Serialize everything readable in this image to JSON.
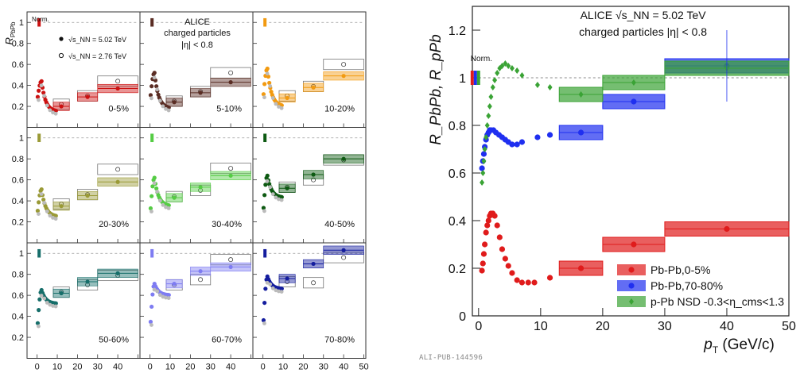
{
  "footer": {
    "publication_id": "ALI-PUB-144596"
  },
  "colors": {
    "pbpb_0_5": "#cc1111",
    "pbpb_5_10": "#5a2d24",
    "pbpb_10_20": "#f29a10",
    "pbpb_20_30": "#9a9a36",
    "pbpb_30_40": "#55cc44",
    "pbpb_40_50": "#0d5a12",
    "pbpb_50_60": "#166e6a",
    "pbpb_60_70": "#7e7cf2",
    "pbpb_70_80": "#141d9e",
    "right_pbpb_0_5": "#e01b1b",
    "right_pbpb_70_80": "#1f2ff0",
    "right_ppb": "#3aa335",
    "ref_2_76": "#9a9a9a"
  },
  "chart_data": [
    {
      "type": "scatter",
      "name": "left-grid",
      "ylabel_main": "R",
      "ylabel_sub": "PbPb",
      "xlabel_main": "p",
      "xlabel_sub": "T",
      "xlabel_unit": "(GeV/c)",
      "xlim": [
        -5,
        51
      ],
      "ylim": [
        0,
        1.1
      ],
      "xticks": [
        0,
        10,
        20,
        30,
        40,
        50
      ],
      "yticks": [
        0.2,
        0.4,
        0.6,
        0.8,
        1
      ],
      "norm_label": "Norm.",
      "experiment": "ALICE",
      "subtitle_line1": "charged particles",
      "subtitle_line2": "|η| < 0.8",
      "legend": [
        {
          "marker": "filled",
          "text": "√s_NN = 5.02 TeV"
        },
        {
          "marker": "open",
          "text": "√s_NN = 2.76 TeV"
        }
      ],
      "panels": [
        {
          "label": "0-5%",
          "ypk": 0.44,
          "ymin": 0.15,
          "bins": [
            [
              2.0,
              0.16
            ],
            [
              12,
              0.2
            ],
            [
              25,
              0.29
            ],
            [
              40,
              0.37
            ]
          ],
          "ref": [
            [
              40,
              0.44
            ],
            [
              25,
              0.3
            ],
            [
              12,
              0.22
            ]
          ]
        },
        {
          "label": "5-10%",
          "ypk": 0.52,
          "ymin": 0.18,
          "bins": [
            [
              2.0,
              0.18
            ],
            [
              12,
              0.24
            ],
            [
              25,
              0.33
            ],
            [
              40,
              0.43
            ]
          ],
          "ref": [
            [
              40,
              0.52
            ],
            [
              25,
              0.34
            ],
            [
              12,
              0.25
            ]
          ]
        },
        {
          "label": "10-20%",
          "ypk": 0.56,
          "ymin": 0.2,
          "bins": [
            [
              2.0,
              0.2
            ],
            [
              12,
              0.28
            ],
            [
              25,
              0.38
            ],
            [
              40,
              0.49
            ]
          ],
          "ref": [
            [
              40,
              0.6
            ],
            [
              25,
              0.39
            ],
            [
              12,
              0.3
            ]
          ]
        },
        {
          "label": "20-30%",
          "ypk": 0.51,
          "ymin": 0.25,
          "bins": [
            [
              2.0,
              0.25
            ],
            [
              12,
              0.35
            ],
            [
              25,
              0.45
            ],
            [
              40,
              0.58
            ]
          ],
          "ref": [
            [
              40,
              0.7
            ],
            [
              25,
              0.46
            ],
            [
              12,
              0.37
            ]
          ]
        },
        {
          "label": "30-40%",
          "ypk": 0.62,
          "ymin": 0.35,
          "bins": [
            [
              2.0,
              0.35
            ],
            [
              12,
              0.43
            ],
            [
              25,
              0.53
            ],
            [
              40,
              0.64
            ]
          ],
          "ref": [
            [
              40,
              0.71
            ],
            [
              25,
              0.5
            ],
            [
              12,
              0.44
            ]
          ]
        },
        {
          "label": "40-50%",
          "ypk": 0.64,
          "ymin": 0.43,
          "bins": [
            [
              2.0,
              0.43
            ],
            [
              12,
              0.52
            ],
            [
              25,
              0.65
            ],
            [
              40,
              0.8
            ]
          ],
          "ref": [
            [
              40,
              0.79
            ],
            [
              25,
              0.6
            ],
            [
              12,
              0.53
            ]
          ]
        },
        {
          "label": "50-60%",
          "ypk": 0.65,
          "ymin": 0.52,
          "bins": [
            [
              2.0,
              0.52
            ],
            [
              12,
              0.62
            ],
            [
              25,
              0.73
            ],
            [
              40,
              0.81
            ]
          ],
          "ref": [
            [
              40,
              0.79
            ],
            [
              25,
              0.7
            ],
            [
              12,
              0.63
            ]
          ]
        },
        {
          "label": "60-70%",
          "ypk": 0.71,
          "ymin": 0.6,
          "bins": [
            [
              2.0,
              0.6
            ],
            [
              12,
              0.71
            ],
            [
              25,
              0.83
            ],
            [
              40,
              0.87
            ]
          ],
          "ref": [
            [
              40,
              0.94
            ],
            [
              25,
              0.75
            ],
            [
              12,
              0.7
            ]
          ]
        },
        {
          "label": "70-80%",
          "ypk": 0.78,
          "ymin": 0.66,
          "bins": [
            [
              2.0,
              0.66
            ],
            [
              12,
              0.76
            ],
            [
              25,
              0.9
            ],
            [
              40,
              1.03
            ]
          ],
          "ref": [
            [
              40,
              0.96
            ],
            [
              25,
              0.72
            ],
            [
              12,
              0.73
            ]
          ]
        }
      ]
    },
    {
      "type": "scatter",
      "name": "right-comparison",
      "ylabel_text": "R_PbPb, R_pPb",
      "xlabel_main": "p",
      "xlabel_sub": "T",
      "xlabel_unit": "(GeV/c)",
      "xlim": [
        -1,
        50
      ],
      "ylim": [
        0,
        1.3
      ],
      "xticks": [
        0,
        10,
        20,
        30,
        40,
        50
      ],
      "yticks": [
        0,
        0.2,
        0.4,
        0.6,
        0.8,
        1,
        1.2
      ],
      "norm_label": "Norm.",
      "title_line1": "ALICE √s_NN = 5.02 TeV",
      "title_line2": "charged particles |η| < 0.8",
      "series": [
        {
          "name": "Pb-Pb,0-5%",
          "marker": "circle",
          "curve": [
            [
              0.55,
              0.19
            ],
            [
              0.7,
              0.22
            ],
            [
              0.85,
              0.26
            ],
            [
              1.0,
              0.3
            ],
            [
              1.2,
              0.35
            ],
            [
              1.4,
              0.38
            ],
            [
              1.6,
              0.4
            ],
            [
              1.8,
              0.42
            ],
            [
              2.0,
              0.43
            ],
            [
              2.3,
              0.43
            ],
            [
              2.6,
              0.42
            ],
            [
              3.0,
              0.38
            ],
            [
              3.4,
              0.33
            ],
            [
              3.8,
              0.28
            ],
            [
              4.3,
              0.24
            ],
            [
              4.8,
              0.21
            ],
            [
              5.4,
              0.18
            ],
            [
              6.2,
              0.15
            ],
            [
              7.0,
              0.14
            ],
            [
              8.0,
              0.14
            ],
            [
              9.0,
              0.14
            ],
            [
              11.5,
              0.16
            ]
          ],
          "bins": [
            [
              16.5,
              0.2,
              13,
              20
            ],
            [
              25,
              0.3,
              20,
              30
            ],
            [
              40,
              0.365,
              30,
              50
            ]
          ]
        },
        {
          "name": "Pb-Pb,70-80%",
          "marker": "circle",
          "curve": [
            [
              0.55,
              0.62
            ],
            [
              0.7,
              0.65
            ],
            [
              0.85,
              0.68
            ],
            [
              1.0,
              0.71
            ],
            [
              1.2,
              0.74
            ],
            [
              1.4,
              0.76
            ],
            [
              1.6,
              0.77
            ],
            [
              1.8,
              0.78
            ],
            [
              2.0,
              0.78
            ],
            [
              2.4,
              0.78
            ],
            [
              2.8,
              0.77
            ],
            [
              3.3,
              0.76
            ],
            [
              3.8,
              0.75
            ],
            [
              4.3,
              0.74
            ],
            [
              4.8,
              0.73
            ],
            [
              5.4,
              0.72
            ],
            [
              6.2,
              0.72
            ],
            [
              7.0,
              0.73
            ],
            [
              9.5,
              0.75
            ],
            [
              11.5,
              0.76
            ]
          ],
          "bins": [
            [
              16.5,
              0.77,
              13,
              20
            ],
            [
              25,
              0.9,
              20,
              30
            ],
            [
              40,
              1.05,
              30,
              50
            ]
          ]
        },
        {
          "name": "p-Pb NSD -0.3<η_cms<1.3",
          "marker": "diamond",
          "curve": [
            [
              0.55,
              0.56
            ],
            [
              0.7,
              0.6
            ],
            [
              0.85,
              0.65
            ],
            [
              1.0,
              0.7
            ],
            [
              1.2,
              0.75
            ],
            [
              1.4,
              0.8
            ],
            [
              1.6,
              0.84
            ],
            [
              1.8,
              0.88
            ],
            [
              2.0,
              0.92
            ],
            [
              2.3,
              0.96
            ],
            [
              2.6,
              0.99
            ],
            [
              3.0,
              1.02
            ],
            [
              3.4,
              1.04
            ],
            [
              3.8,
              1.05
            ],
            [
              4.3,
              1.06
            ],
            [
              4.8,
              1.05
            ],
            [
              5.4,
              1.04
            ],
            [
              6.2,
              1.03
            ],
            [
              7.0,
              1.01
            ],
            [
              9.5,
              0.97
            ],
            [
              11.5,
              0.96
            ]
          ],
          "bins": [
            [
              16.5,
              0.93,
              13,
              20
            ],
            [
              25,
              0.98,
              20,
              30
            ],
            [
              40,
              1.04,
              30,
              50
            ]
          ]
        }
      ]
    }
  ]
}
